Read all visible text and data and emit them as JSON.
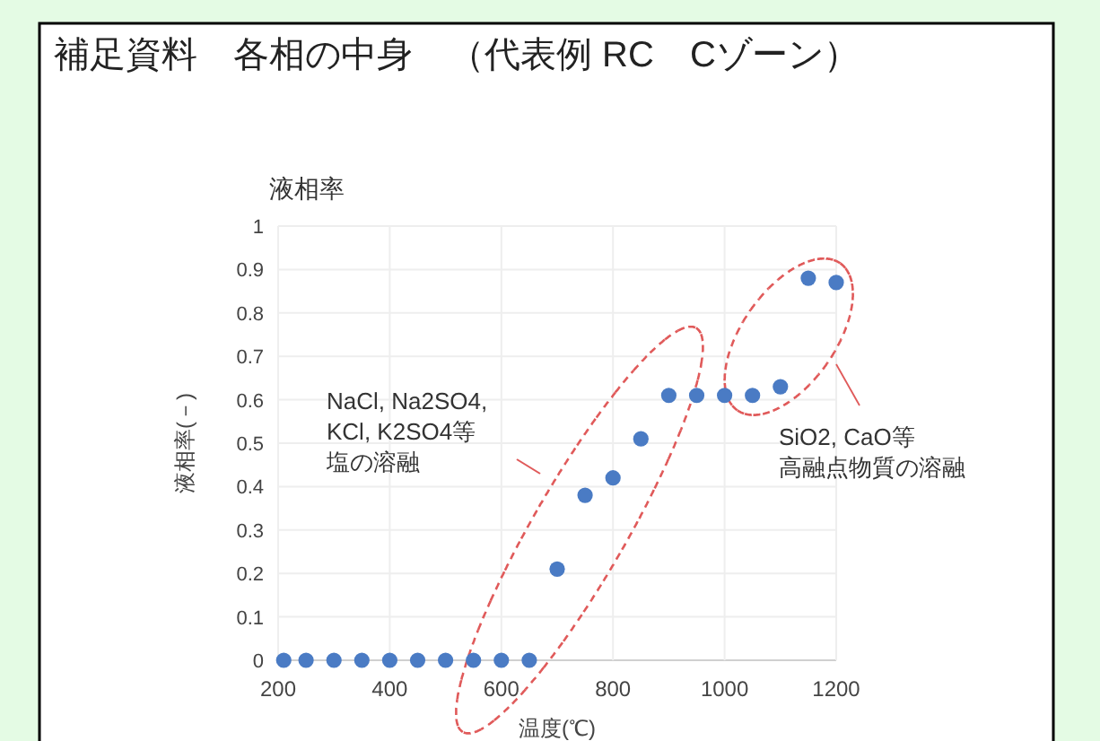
{
  "chart_data": {
    "type": "scatter",
    "title": "補足資料　各相の中身　（代表例 RC　Cゾーン）",
    "subtitle": "液相率",
    "xlabel": "温度(℃)",
    "ylabel": "液相率(－)",
    "x": [
      210,
      250,
      300,
      350,
      400,
      450,
      500,
      550,
      600,
      650,
      700,
      750,
      800,
      850,
      900,
      950,
      1000,
      1050,
      1100,
      1150,
      1200
    ],
    "series": [
      {
        "color": "#4a7bc4",
        "values": [
          0,
          0,
          0,
          0,
          0,
          0,
          0,
          0,
          0,
          0,
          0.21,
          0.38,
          0.42,
          0.51,
          0.61,
          0.61,
          0.61,
          0.61,
          0.63,
          0.88,
          0.87
        ]
      }
    ],
    "xlim": [
      200,
      1200
    ],
    "xticks": [
      200,
      400,
      600,
      800,
      1000,
      1200
    ],
    "ylim": [
      0,
      1
    ],
    "yticks": [
      0,
      0.1,
      0.2,
      0.3,
      0.4,
      0.5,
      0.6,
      0.7,
      0.8,
      0.9,
      1
    ],
    "grid": true,
    "marker": "circle",
    "annotations": [
      "NaCl, Na2SO4,",
      "KCl, K2SO4等",
      "塩の溶融",
      "SiO2, CaO等",
      "高融点物質の溶融"
    ]
  }
}
